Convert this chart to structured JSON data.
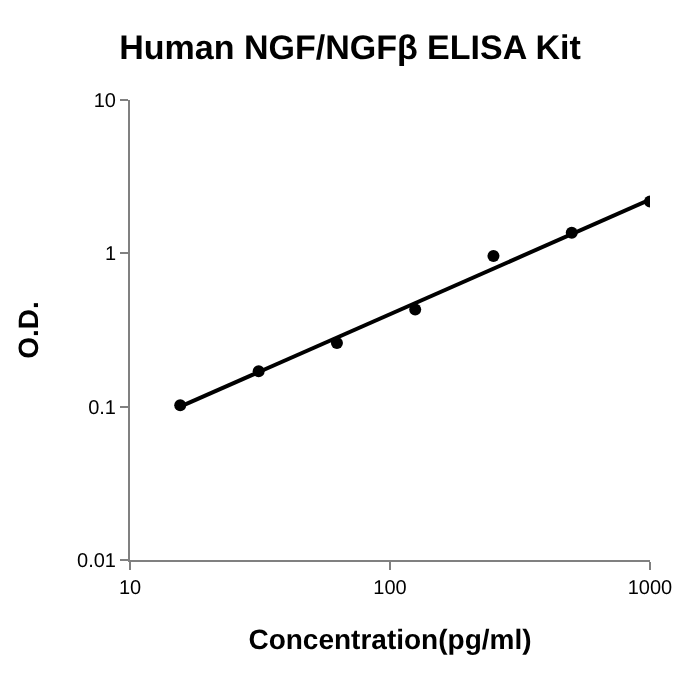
{
  "chart_data": {
    "type": "scatter",
    "title": "Human NGF/NGFβ ELISA Kit",
    "xlabel": "Concentration(pg/ml)",
    "ylabel": "O.D.",
    "log": "xy",
    "marker": "circle",
    "xlim": [
      10,
      1000
    ],
    "xticks": [
      10,
      100,
      1000
    ],
    "ylim": [
      0.01,
      10
    ],
    "yticks": [
      0.01,
      0.1,
      1,
      10
    ],
    "series": [
      {
        "color": "#000000",
        "x": [
          15.6,
          31.25,
          62.5,
          125,
          250,
          500,
          1000
        ],
        "values": [
          0.102,
          0.17,
          0.26,
          0.43,
          0.96,
          1.36,
          2.18
        ]
      },
      {
        "type": "line",
        "marker": "none",
        "color": "#000000",
        "x": [
          15.6,
          1000
        ],
        "values": [
          0.1,
          2.24
        ]
      }
    ]
  }
}
